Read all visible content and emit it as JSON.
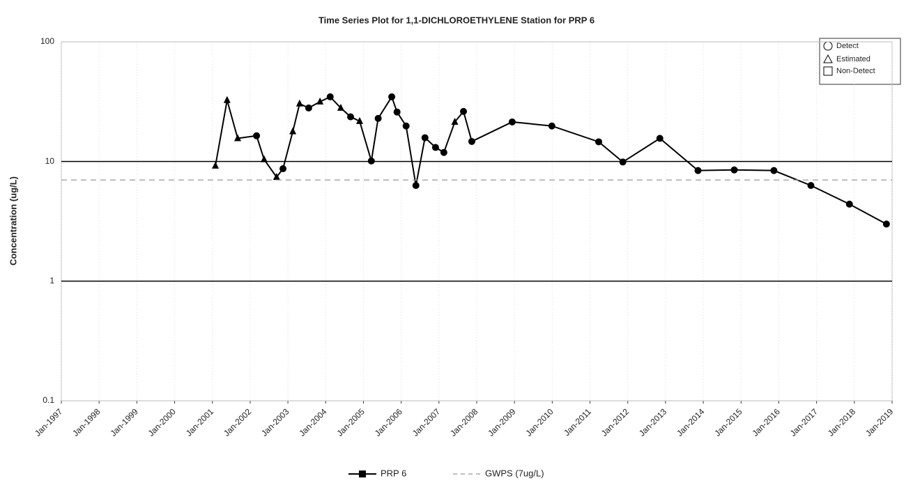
{
  "chart_data": {
    "type": "line",
    "title": "Time Series Plot for 1,1-DICHLOROETHYLENE Station for PRP  6",
    "y_label": "Concentration (ug/L)",
    "log_scale_y": true,
    "grid": true,
    "xlim": [
      1997,
      2019
    ],
    "ylim": [
      0.1,
      100
    ],
    "yticks": [
      100,
      10,
      1,
      0.1
    ],
    "xticks": [
      {
        "value": 1997,
        "label": "Jan-1997"
      },
      {
        "value": 1998,
        "label": "Jan-1998"
      },
      {
        "value": 1999,
        "label": "Jan-1999"
      },
      {
        "value": 2000,
        "label": "Jan-2000"
      },
      {
        "value": 2001,
        "label": "Jan-2001"
      },
      {
        "value": 2002,
        "label": "Jan-2002"
      },
      {
        "value": 2003,
        "label": "Jan-2003"
      },
      {
        "value": 2004,
        "label": "Jan-2004"
      },
      {
        "value": 2005,
        "label": "Jan-2005"
      },
      {
        "value": 2006,
        "label": "Jan-2006"
      },
      {
        "value": 2007,
        "label": "Jan-2007"
      },
      {
        "value": 2008,
        "label": "Jan-2008"
      },
      {
        "value": 2009,
        "label": "Jan-2009"
      },
      {
        "value": 2010,
        "label": "Jan-2010"
      },
      {
        "value": 2011,
        "label": "Jan-2011"
      },
      {
        "value": 2012,
        "label": "Jan-2012"
      },
      {
        "value": 2013,
        "label": "Jan-2013"
      },
      {
        "value": 2014,
        "label": "Jan-2014"
      },
      {
        "value": 2015,
        "label": "Jan-2015"
      },
      {
        "value": 2016,
        "label": "Jan-2016"
      },
      {
        "value": 2017,
        "label": "Jan-2017"
      },
      {
        "value": 2018,
        "label": "Jan-2018"
      },
      {
        "value": 2019,
        "label": "Jan-2019"
      }
    ],
    "qualifier_legend": [
      "Detect",
      "Estimated",
      "Non-Detect"
    ],
    "series": [
      {
        "name": "PRP  6",
        "color": "#000000",
        "x": [
          2001.08,
          2001.39,
          2001.67,
          2002.17,
          2002.37,
          2002.7,
          2002.87,
          2003.13,
          2003.31,
          2003.55,
          2003.85,
          2004.12,
          2004.4,
          2004.66,
          2004.9,
          2005.21,
          2005.39,
          2005.75,
          2005.89,
          2006.13,
          2006.39,
          2006.63,
          2006.91,
          2007.13,
          2007.42,
          2007.65,
          2007.87,
          2008.94,
          2009.99,
          2011.23,
          2011.87,
          2012.85,
          2013.86,
          2014.82,
          2015.87,
          2016.85,
          2017.87,
          2018.85
        ],
        "values": [
          9.2,
          32.5,
          15.6,
          16.4,
          10.4,
          7.4,
          8.7,
          17.8,
          30.4,
          28,
          31.6,
          34.7,
          28,
          23.6,
          21.7,
          10.1,
          22.9,
          34.7,
          25.9,
          19.8,
          6.3,
          15.8,
          13.1,
          11.9,
          21.4,
          26.2,
          14.7,
          21.4,
          19.8,
          14.6,
          9.9,
          15.6,
          8.4,
          8.5,
          8.4,
          6.3,
          4.4,
          3.0
        ],
        "qualifiers": [
          "Estimated",
          "Estimated",
          "Estimated",
          "Detect",
          "Estimated",
          "Estimated",
          "Detect",
          "Estimated",
          "Estimated",
          "Detect",
          "Estimated",
          "Detect",
          "Estimated",
          "Detect",
          "Estimated",
          "Detect",
          "Detect",
          "Detect",
          "Detect",
          "Detect",
          "Detect",
          "Detect",
          "Detect",
          "Detect",
          "Estimated",
          "Detect",
          "Detect",
          "Detect",
          "Detect",
          "Detect",
          "Detect",
          "Detect",
          "Detect",
          "Detect",
          "Detect",
          "Detect",
          "Detect",
          "Detect"
        ]
      },
      {
        "name": "GWPS (7ug/L)",
        "color": "#999999",
        "dashed": true,
        "x": [
          1997,
          2019
        ],
        "values": [
          7,
          7
        ]
      }
    ]
  }
}
